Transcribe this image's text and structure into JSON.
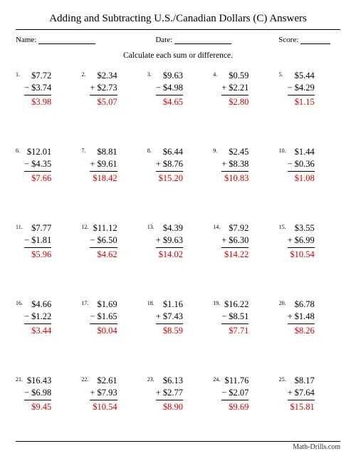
{
  "title": "Adding and Subtracting U.S./Canadian Dollars (C) Answers",
  "labels": {
    "name": "Name:",
    "date": "Date:",
    "score": "Score:"
  },
  "instruction": "Calculate each sum or difference.",
  "footer": "Math-Drills.com",
  "colors": {
    "answer": "#d00000",
    "text": "#000000"
  },
  "problems": [
    {
      "n": "1.",
      "a": "$7.72",
      "op": "−",
      "b": "$3.74",
      "ans": "$3.98"
    },
    {
      "n": "2.",
      "a": "$2.34",
      "op": "+",
      "b": "$2.73",
      "ans": "$5.07"
    },
    {
      "n": "3.",
      "a": "$9.63",
      "op": "−",
      "b": "$4.98",
      "ans": "$4.65"
    },
    {
      "n": "4.",
      "a": "$0.59",
      "op": "+",
      "b": "$2.21",
      "ans": "$2.80"
    },
    {
      "n": "5.",
      "a": "$5.44",
      "op": "−",
      "b": "$4.29",
      "ans": "$1.15"
    },
    {
      "n": "6.",
      "a": "$12.01",
      "op": "−",
      "b": "$4.35",
      "ans": "$7.66"
    },
    {
      "n": "7.",
      "a": "$8.81",
      "op": "+",
      "b": "$9.61",
      "ans": "$18.42"
    },
    {
      "n": "8.",
      "a": "$6.44",
      "op": "+",
      "b": "$8.76",
      "ans": "$15.20"
    },
    {
      "n": "9.",
      "a": "$2.45",
      "op": "+",
      "b": "$8.38",
      "ans": "$10.83"
    },
    {
      "n": "10.",
      "a": "$1.44",
      "op": "−",
      "b": "$0.36",
      "ans": "$1.08"
    },
    {
      "n": "11.",
      "a": "$7.77",
      "op": "−",
      "b": "$1.81",
      "ans": "$5.96"
    },
    {
      "n": "12.",
      "a": "$11.12",
      "op": "−",
      "b": "$6.50",
      "ans": "$4.62"
    },
    {
      "n": "13.",
      "a": "$4.39",
      "op": "+",
      "b": "$9.63",
      "ans": "$14.02"
    },
    {
      "n": "14.",
      "a": "$7.92",
      "op": "+",
      "b": "$6.30",
      "ans": "$14.22"
    },
    {
      "n": "15.",
      "a": "$3.55",
      "op": "+",
      "b": "$6.99",
      "ans": "$10.54"
    },
    {
      "n": "16.",
      "a": "$4.66",
      "op": "−",
      "b": "$1.22",
      "ans": "$3.44"
    },
    {
      "n": "17.",
      "a": "$1.69",
      "op": "−",
      "b": "$1.65",
      "ans": "$0.04"
    },
    {
      "n": "18.",
      "a": "$1.16",
      "op": "+",
      "b": "$7.43",
      "ans": "$8.59"
    },
    {
      "n": "19.",
      "a": "$16.22",
      "op": "−",
      "b": "$8.51",
      "ans": "$7.71"
    },
    {
      "n": "20.",
      "a": "$6.78",
      "op": "+",
      "b": "$1.48",
      "ans": "$8.26"
    },
    {
      "n": "21.",
      "a": "$16.43",
      "op": "−",
      "b": "$6.98",
      "ans": "$9.45"
    },
    {
      "n": "22.",
      "a": "$2.61",
      "op": "+",
      "b": "$7.93",
      "ans": "$10.54"
    },
    {
      "n": "23.",
      "a": "$6.13",
      "op": "+",
      "b": "$2.77",
      "ans": "$8.90"
    },
    {
      "n": "24.",
      "a": "$11.76",
      "op": "−",
      "b": "$2.07",
      "ans": "$9.69"
    },
    {
      "n": "25.",
      "a": "$8.17",
      "op": "+",
      "b": "$7.64",
      "ans": "$15.81"
    }
  ]
}
